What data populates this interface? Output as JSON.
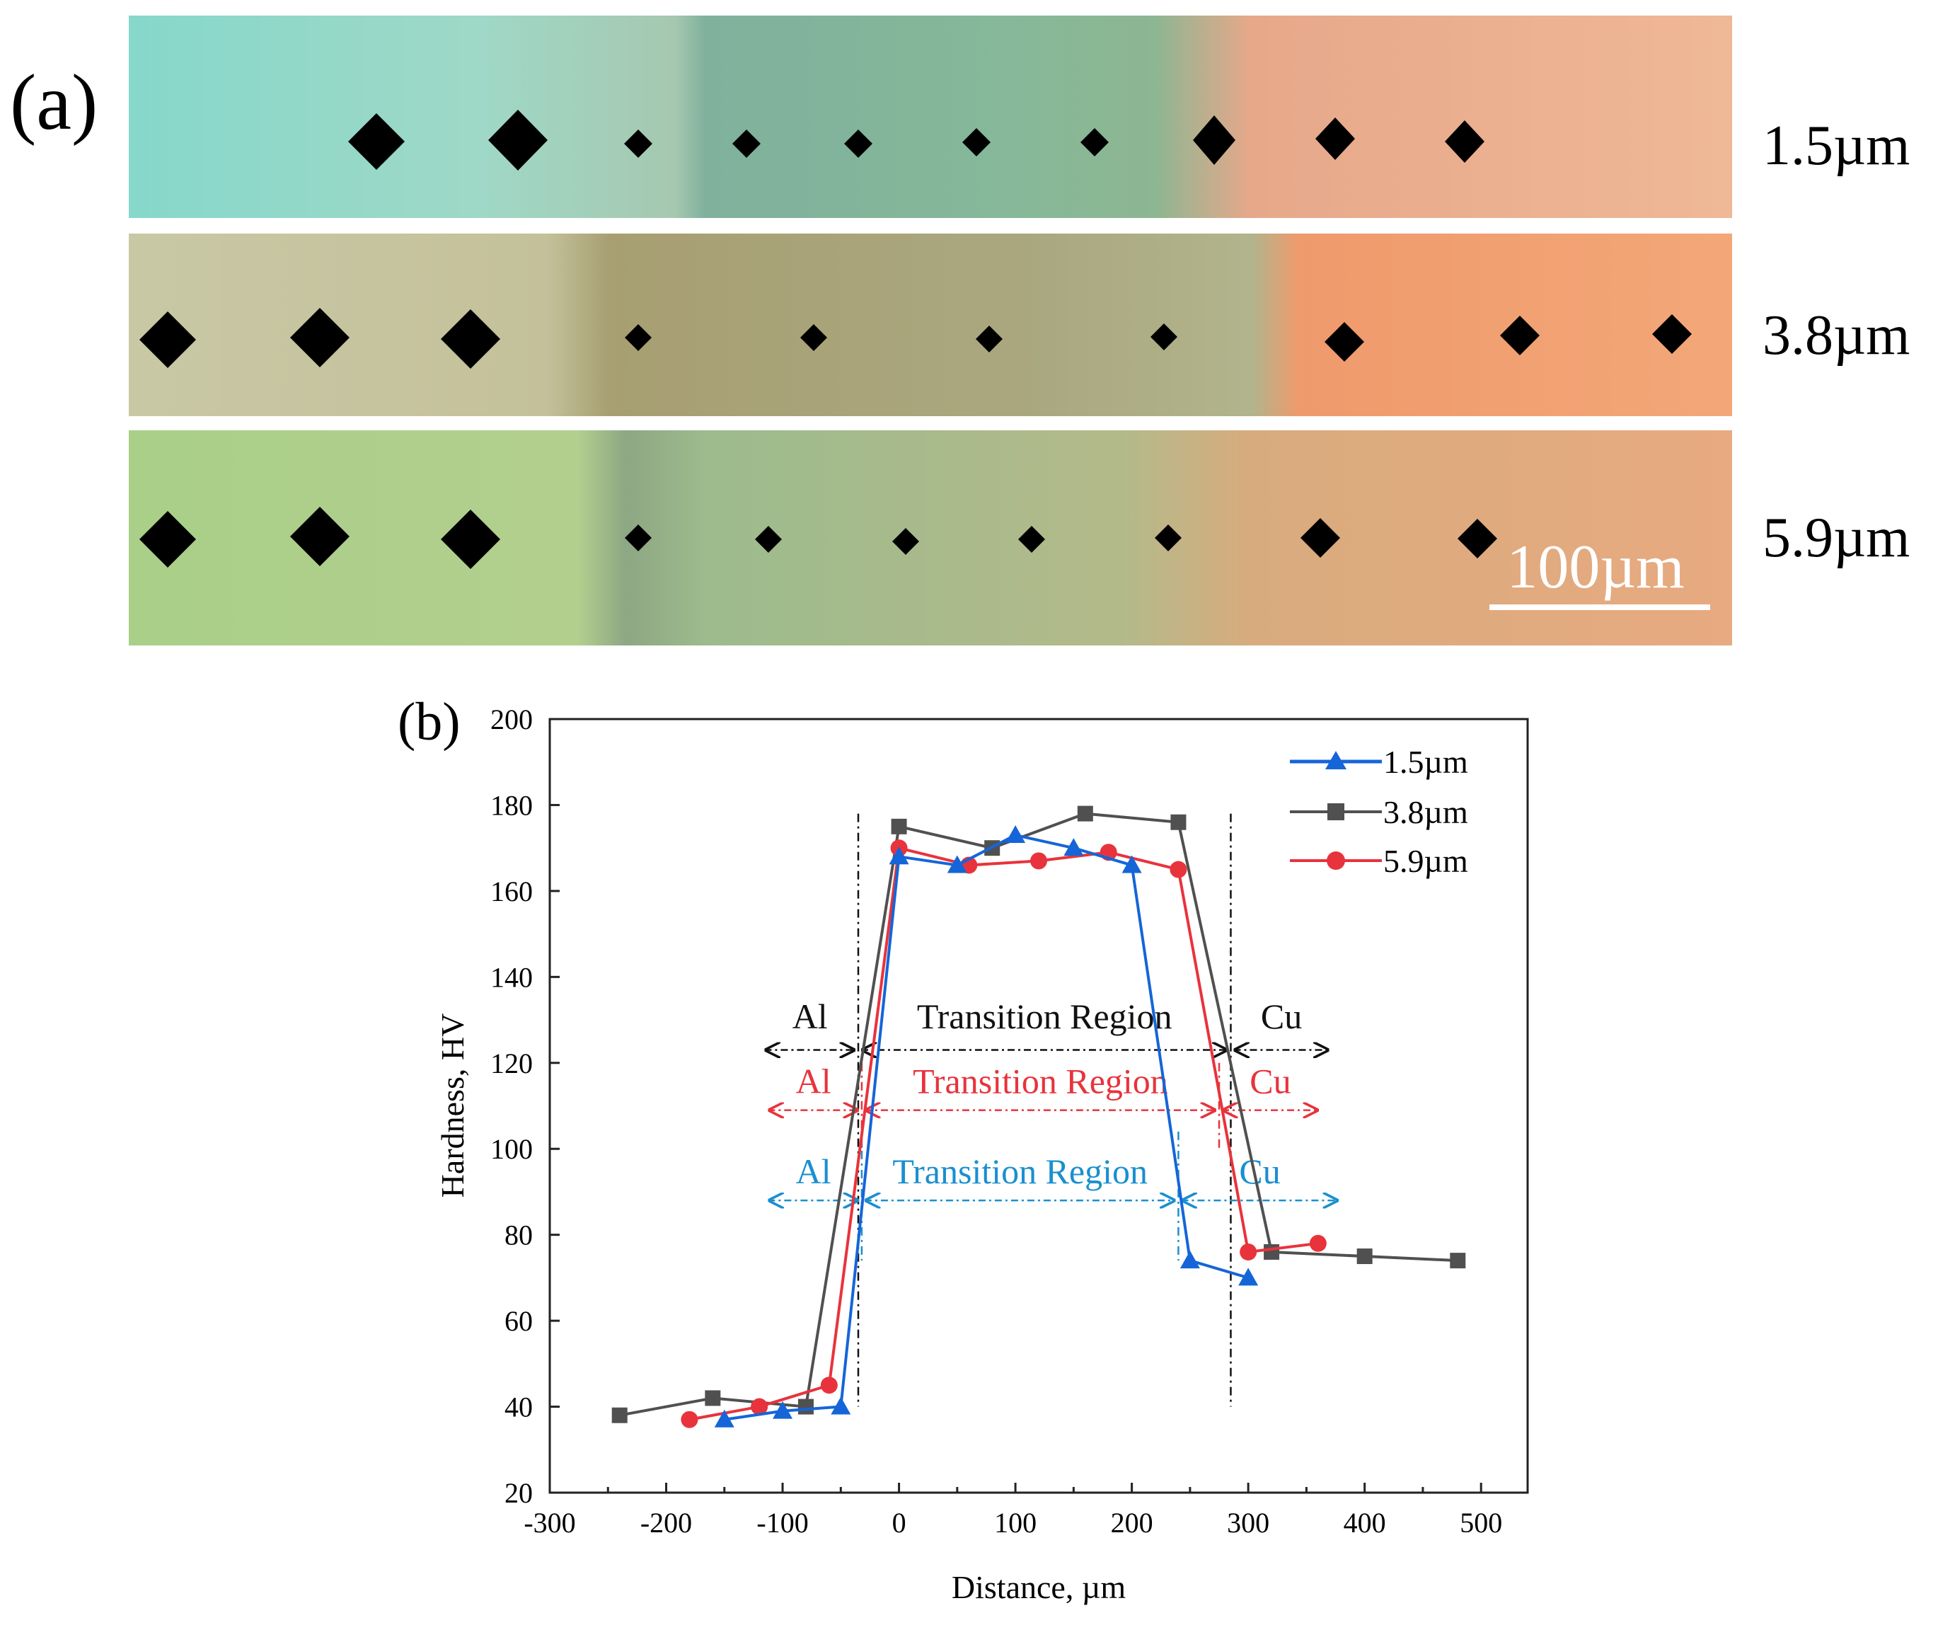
{
  "panel_a": {
    "label": "(a)",
    "rows": [
      {
        "label": "1.5µm"
      },
      {
        "label": "3.8µm"
      },
      {
        "label": "5.9µm"
      }
    ],
    "scale_bar": "100µm"
  },
  "panel_b": {
    "label": "(b)"
  },
  "chart_data": {
    "type": "line",
    "title": "",
    "xlabel": "Distance, µm",
    "ylabel": "Hardness, HV",
    "xlim": [
      -300,
      540
    ],
    "ylim": [
      20,
      200
    ],
    "xticks": [
      -300,
      -200,
      -100,
      0,
      100,
      200,
      300,
      400,
      500
    ],
    "yticks": [
      20,
      40,
      60,
      80,
      100,
      120,
      140,
      160,
      180,
      200
    ],
    "legend_position": "top-right",
    "series": [
      {
        "name": "1.5µm",
        "color": "#1565d8",
        "marker": "triangle",
        "points": [
          [
            -150,
            37
          ],
          [
            -100,
            39
          ],
          [
            -50,
            40
          ],
          [
            0,
            168
          ],
          [
            50,
            166
          ],
          [
            100,
            173
          ],
          [
            150,
            170
          ],
          [
            200,
            166
          ],
          [
            250,
            74
          ],
          [
            300,
            70
          ]
        ]
      },
      {
        "name": "3.8µm",
        "color": "#505050",
        "marker": "square",
        "points": [
          [
            -240,
            38
          ],
          [
            -160,
            42
          ],
          [
            -80,
            40
          ],
          [
            0,
            175
          ],
          [
            80,
            170
          ],
          [
            160,
            178
          ],
          [
            240,
            176
          ],
          [
            320,
            76
          ],
          [
            400,
            75
          ],
          [
            480,
            74
          ]
        ]
      },
      {
        "name": "5.9µm",
        "color": "#e8333c",
        "marker": "circle",
        "points": [
          [
            -180,
            37
          ],
          [
            -120,
            40
          ],
          [
            -60,
            45
          ],
          [
            0,
            170
          ],
          [
            60,
            166
          ],
          [
            120,
            167
          ],
          [
            180,
            169
          ],
          [
            240,
            165
          ],
          [
            300,
            76
          ],
          [
            360,
            78
          ]
        ]
      }
    ],
    "annotations": [
      {
        "color": "#111111",
        "boundaries": [
          -35,
          285
        ],
        "arrow_y": 123,
        "text_y": 128,
        "left_text": "Al",
        "middle_text": "Transition Region",
        "right_text": "Cu",
        "left_end": -118,
        "right_end": 372
      },
      {
        "color": "#e8333c",
        "boundaries": [
          -32,
          275
        ],
        "arrow_y": 109,
        "text_y": 113,
        "left_text": "Al",
        "middle_text": "Transition Region",
        "right_text": "Cu",
        "left_end": -115,
        "right_end": 363
      },
      {
        "color": "#1a8fd0",
        "boundaries": [
          -32,
          240
        ],
        "arrow_y": 88,
        "text_y": 92,
        "left_text": "Al",
        "middle_text": "Transition Region",
        "right_text": "Cu",
        "left_end": -115,
        "right_end": 380
      }
    ]
  }
}
